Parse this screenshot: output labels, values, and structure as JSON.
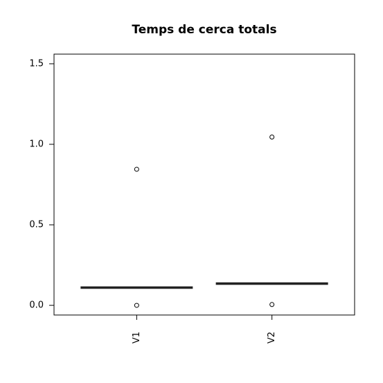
{
  "chart_data": {
    "type": "boxplot",
    "title": "Temps de cerca totals",
    "xlabel": "",
    "ylabel": "",
    "categories": [
      "V1",
      "V2"
    ],
    "ylim": [
      -0.06,
      1.56
    ],
    "yticks": [
      0.0,
      0.5,
      1.0,
      1.5
    ],
    "ytick_labels": [
      "0.0",
      "0.5",
      "1.0",
      "1.5"
    ],
    "grid": false,
    "series": [
      {
        "category": "V1",
        "median": 0.11,
        "outliers": [
          0.0,
          0.845
        ]
      },
      {
        "category": "V2",
        "median": 0.135,
        "outliers": [
          0.005,
          1.045
        ]
      }
    ],
    "colors": {
      "median": "#222222",
      "axis": "#000000",
      "point": "#000000"
    }
  }
}
